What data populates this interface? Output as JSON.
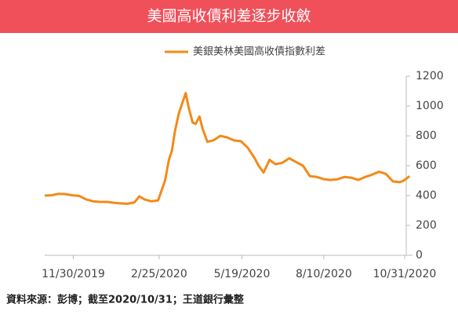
{
  "chart_data": {
    "type": "line",
    "title": "美國高收債利差逐步收斂",
    "source": "資料來源：彭博；截至2020/10/31；王道銀行彙整",
    "x": [
      "11/1/2019",
      "11/8/2019",
      "11/15/2019",
      "11/22/2019",
      "11/29/2019",
      "12/6/2019",
      "12/13/2019",
      "12/20/2019",
      "12/27/2019",
      "1/3/2020",
      "1/10/2020",
      "1/17/2020",
      "1/24/2020",
      "1/31/2020",
      "2/5/2020",
      "2/10/2020",
      "2/17/2020",
      "2/24/2020",
      "3/2/2020",
      "3/6/2020",
      "3/9/2020",
      "3/12/2020",
      "3/16/2020",
      "3/19/2020",
      "3/23/2020",
      "3/26/2020",
      "3/30/2020",
      "4/2/2020",
      "4/6/2020",
      "4/9/2020",
      "4/14/2020",
      "4/20/2020",
      "4/27/2020",
      "5/4/2020",
      "5/11/2020",
      "5/18/2020",
      "5/25/2020",
      "6/1/2020",
      "6/5/2020",
      "6/10/2020",
      "6/16/2020",
      "6/22/2020",
      "6/29/2020",
      "7/6/2020",
      "7/13/2020",
      "7/20/2020",
      "7/27/2020",
      "8/3/2020",
      "8/10/2020",
      "8/17/2020",
      "8/24/2020",
      "8/31/2020",
      "9/7/2020",
      "9/14/2020",
      "9/21/2020",
      "9/28/2020",
      "10/5/2020",
      "10/12/2020",
      "10/19/2020",
      "10/26/2020",
      "10/30/2020",
      "11/5/2020"
    ],
    "series": [
      {
        "name": "美銀美林美國高收債指數利差",
        "color": "#f28a1a",
        "values": [
          400,
          402,
          412,
          410,
          402,
          398,
          375,
          362,
          358,
          358,
          352,
          348,
          345,
          355,
          395,
          375,
          362,
          368,
          500,
          640,
          700,
          830,
          950,
          1010,
          1087,
          990,
          890,
          880,
          930,
          850,
          760,
          770,
          800,
          790,
          770,
          765,
          720,
          650,
          600,
          555,
          640,
          610,
          620,
          650,
          625,
          600,
          530,
          525,
          510,
          505,
          510,
          525,
          520,
          505,
          525,
          540,
          560,
          545,
          495,
          490,
          500,
          530
        ]
      }
    ],
    "xlim": [
      "11/1/2019",
      "11/8/2020"
    ],
    "xticks": [
      "11/30/2019",
      "2/25/2020",
      "5/19/2020",
      "8/10/2020",
      "10/31/2020"
    ],
    "ylim": [
      0,
      1200
    ],
    "yticks": [
      0,
      200,
      400,
      600,
      800,
      1000,
      1200
    ]
  }
}
